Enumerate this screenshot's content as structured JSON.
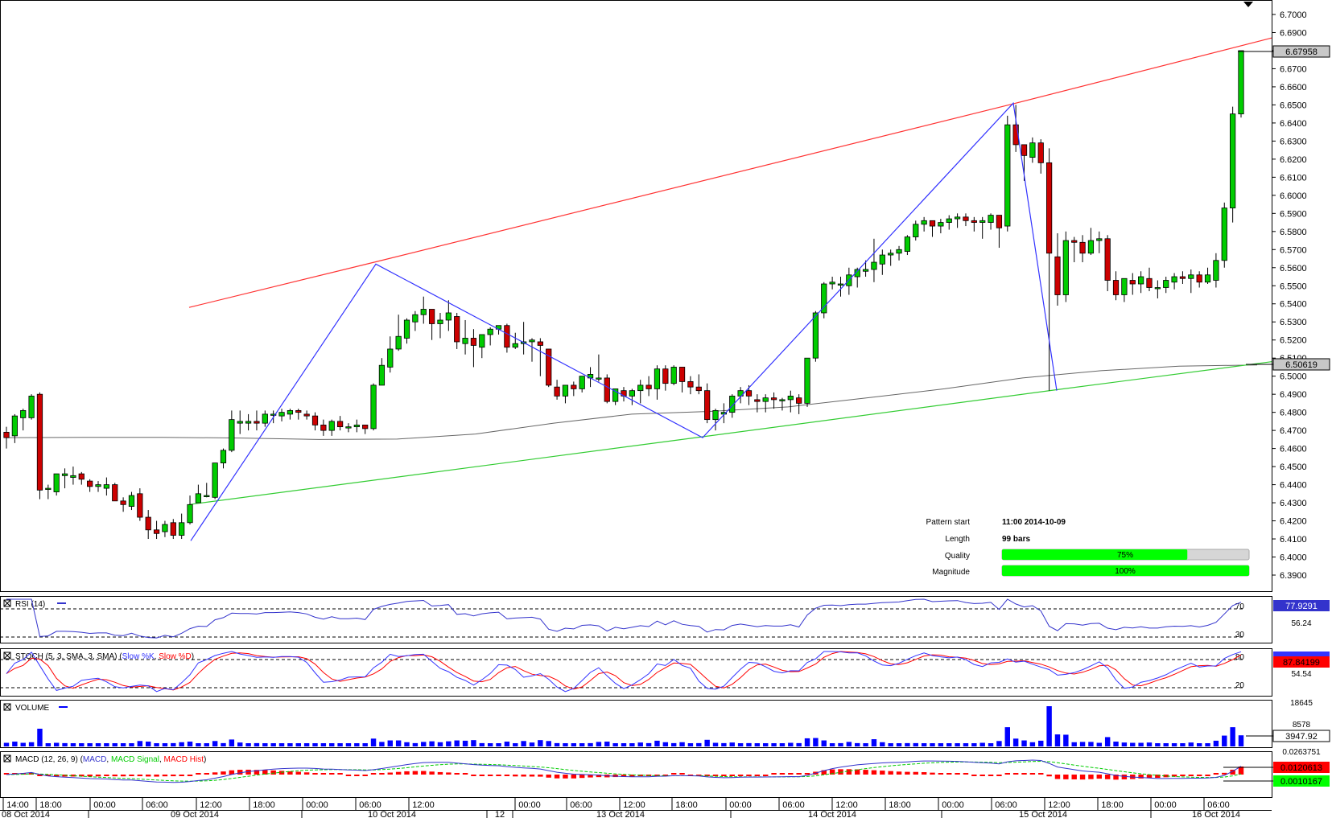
{
  "pattern_info": {
    "start_label": "Pattern start",
    "start_value": "11:00 2014-10-09",
    "length_label": "Length",
    "length_value": "99 bars",
    "quality_label": "Quality",
    "quality_text": "75%",
    "quality_fraction": 0.75,
    "magnitude_label": "Magnitude",
    "magnitude_text": "100%",
    "magnitude_fraction": 1.0
  },
  "price_axis": {
    "ticks": [
      "6.7000",
      "6.6900",
      "6.6800",
      "6.6700",
      "6.6600",
      "6.6500",
      "6.6400",
      "6.6300",
      "6.6200",
      "6.6100",
      "6.6000",
      "6.5900",
      "6.5800",
      "6.5700",
      "6.5600",
      "6.5500",
      "6.5400",
      "6.5300",
      "6.5200",
      "6.5100",
      "6.5000",
      "6.4900",
      "6.4800",
      "6.4700",
      "6.4600",
      "6.4500",
      "6.4400",
      "6.4300",
      "6.4200",
      "6.4100",
      "6.4000",
      "6.3900"
    ],
    "current_price": "6.67958",
    "ma_value": "6.50619"
  },
  "rsi": {
    "title": "RSI (14)",
    "value": "77.9291",
    "mid": "56.24",
    "upper": "70",
    "lower": "30"
  },
  "stoch": {
    "title": "STOCH (5, 3, SMA, 3, SMA)",
    "k_label": "Slow %K",
    "d_label": "Slow %D",
    "value": "87.84199",
    "mid": "54.54",
    "upper": "80",
    "lower": "20"
  },
  "volume": {
    "title": "VOLUME",
    "value": "3947.92",
    "top": "18645",
    "mid": "8578"
  },
  "macd": {
    "title": "MACD (12, 26, 9)",
    "macd_label": "MACD",
    "signal_label": "MACD Signal",
    "hist_label": "MACD Hist",
    "top": "0.0263751",
    "value1": "0.0120613",
    "value2": "0.0010167"
  },
  "time_axis": {
    "hours": [
      "14:00",
      "18:00",
      "00:00",
      "06:00",
      "12:00",
      "18:00",
      "00:00",
      "06:00",
      "12:00",
      "00:00",
      "06:00",
      "12:00",
      "18:00",
      "00:00",
      "06:00",
      "12:00",
      "18:00",
      "00:00",
      "06:00",
      "12:00",
      "18:00",
      "00:00",
      "06:00"
    ],
    "dates": [
      "08 Oct 2014",
      "09 Oct 2014",
      "10 Oct 2014",
      "12",
      "13 Oct 2014",
      "14 Oct 2014",
      "15 Oct 2014",
      "16 Oct 2014"
    ]
  },
  "colors": {
    "up_candle": "#00cc00",
    "down_candle": "#cc0000",
    "resistance": "#ff3333",
    "support": "#33cc33",
    "pattern": "#3333ff",
    "moving_average": "#666666",
    "rsi_line": "#3333cc",
    "stoch_k": "#3333ff",
    "stoch_d": "#ff0000",
    "volume_bar": "#0000ff",
    "macd_line": "#3333cc",
    "macd_signal": "#00cc00",
    "macd_hist": "#ff0000",
    "quality_bar": "#00ff00"
  },
  "chart_data": {
    "type": "candlestick",
    "instrument_timeframe": "1h",
    "ylim": [
      6.385,
      6.705
    ],
    "candles": [
      [
        6.469,
        6.472,
        6.46,
        6.466
      ],
      [
        6.467,
        6.479,
        6.463,
        6.478
      ],
      [
        6.477,
        6.482,
        6.47,
        6.481
      ],
      [
        6.477,
        6.49,
        6.476,
        6.489
      ],
      [
        6.49,
        6.491,
        6.432,
        6.437
      ],
      [
        6.438,
        6.44,
        6.432,
        6.438
      ],
      [
        6.436,
        6.446,
        6.434,
        6.446
      ],
      [
        6.445,
        6.449,
        6.438,
        6.446
      ],
      [
        6.444,
        6.45,
        6.44,
        6.445
      ],
      [
        6.446,
        6.447,
        6.44,
        6.443
      ],
      [
        6.442,
        6.443,
        6.436,
        6.439
      ],
      [
        6.439,
        6.442,
        6.436,
        6.44
      ],
      [
        6.438,
        6.444,
        6.434,
        6.44
      ],
      [
        6.44,
        6.441,
        6.431,
        6.431
      ],
      [
        6.431,
        6.433,
        6.425,
        6.429
      ],
      [
        6.428,
        6.436,
        6.426,
        6.434
      ],
      [
        6.435,
        6.438,
        6.42,
        6.422
      ],
      [
        6.422,
        6.426,
        6.41,
        6.415
      ],
      [
        6.415,
        6.42,
        6.41,
        6.413
      ],
      [
        6.414,
        6.42,
        6.411,
        6.418
      ],
      [
        6.419,
        6.421,
        6.41,
        6.412
      ],
      [
        6.412,
        6.424,
        6.41,
        6.419
      ],
      [
        6.419,
        6.434,
        6.418,
        6.429
      ],
      [
        6.43,
        6.44,
        6.43,
        6.435
      ],
      [
        6.434,
        6.441,
        6.433,
        6.434
      ],
      [
        6.433,
        6.45,
        6.432,
        6.452
      ],
      [
        6.452,
        6.46,
        6.449,
        6.459
      ],
      [
        6.459,
        6.481,
        6.458,
        6.476
      ],
      [
        6.474,
        6.481,
        6.468,
        6.475
      ],
      [
        6.474,
        6.479,
        6.47,
        6.475
      ],
      [
        6.475,
        6.481,
        6.47,
        6.474
      ],
      [
        6.474,
        6.481,
        6.472,
        6.479
      ],
      [
        6.479,
        6.481,
        6.474,
        6.479
      ],
      [
        6.478,
        6.482,
        6.475,
        6.48
      ],
      [
        6.479,
        6.482,
        6.476,
        6.481
      ],
      [
        6.481,
        6.482,
        6.476,
        6.48
      ],
      [
        6.479,
        6.481,
        6.476,
        6.478
      ],
      [
        6.478,
        6.48,
        6.47,
        6.473
      ],
      [
        6.473,
        6.476,
        6.467,
        6.47
      ],
      [
        6.47,
        6.476,
        6.467,
        6.475
      ],
      [
        6.475,
        6.478,
        6.47,
        6.472
      ],
      [
        6.472,
        6.474,
        6.469,
        6.472
      ],
      [
        6.472,
        6.476,
        6.469,
        6.473
      ],
      [
        6.473,
        6.472,
        6.468,
        6.471
      ],
      [
        6.471,
        6.496,
        6.47,
        6.495
      ],
      [
        6.495,
        6.51,
        6.495,
        6.506
      ],
      [
        6.505,
        6.522,
        6.502,
        6.515
      ],
      [
        6.515,
        6.534,
        6.514,
        6.522
      ],
      [
        6.521,
        6.532,
        6.518,
        6.531
      ],
      [
        6.53,
        6.536,
        6.525,
        6.534
      ],
      [
        6.534,
        6.544,
        6.529,
        6.537
      ],
      [
        6.537,
        6.537,
        6.52,
        6.529
      ],
      [
        6.529,
        6.535,
        6.521,
        6.531
      ],
      [
        6.531,
        6.542,
        6.525,
        6.535
      ],
      [
        6.533,
        6.535,
        6.515,
        6.519
      ],
      [
        6.518,
        6.531,
        6.512,
        6.521
      ],
      [
        6.521,
        6.526,
        6.505,
        6.517
      ],
      [
        6.516,
        6.521,
        6.51,
        6.523
      ],
      [
        6.523,
        6.527,
        6.517,
        6.526
      ],
      [
        6.526,
        6.528,
        6.523,
        6.528
      ],
      [
        6.528,
        6.529,
        6.513,
        6.516
      ],
      [
        6.516,
        6.524,
        6.515,
        6.518
      ],
      [
        6.518,
        6.53,
        6.512,
        6.519
      ],
      [
        6.519,
        6.521,
        6.508,
        6.52
      ],
      [
        6.519,
        6.521,
        6.5,
        6.517
      ],
      [
        6.515,
        6.512,
        6.494,
        6.495
      ],
      [
        6.494,
        6.498,
        6.487,
        6.489
      ],
      [
        6.489,
        6.493,
        6.485,
        6.495
      ],
      [
        6.495,
        6.497,
        6.489,
        6.493
      ],
      [
        6.493,
        6.5,
        6.491,
        6.5
      ],
      [
        6.499,
        6.505,
        6.494,
        6.501
      ],
      [
        6.499,
        6.512,
        6.497,
        6.499
      ],
      [
        6.499,
        6.501,
        6.485,
        6.486
      ],
      [
        6.486,
        6.493,
        6.484,
        6.493
      ],
      [
        6.492,
        6.494,
        6.486,
        6.489
      ],
      [
        6.489,
        6.493,
        6.484,
        6.492
      ],
      [
        6.492,
        6.498,
        6.485,
        6.495
      ],
      [
        6.495,
        6.5,
        6.489,
        6.493
      ],
      [
        6.493,
        6.506,
        6.487,
        6.504
      ],
      [
        6.504,
        6.506,
        6.492,
        6.496
      ],
      [
        6.496,
        6.506,
        6.495,
        6.505
      ],
      [
        6.505,
        6.505,
        6.491,
        6.497
      ],
      [
        6.497,
        6.5,
        6.49,
        6.494
      ],
      [
        6.494,
        6.501,
        6.49,
        6.492
      ],
      [
        6.492,
        6.496,
        6.474,
        6.476
      ],
      [
        6.476,
        6.482,
        6.47,
        6.481
      ],
      [
        6.479,
        6.485,
        6.474,
        6.48
      ],
      [
        6.48,
        6.49,
        6.477,
        6.489
      ],
      [
        6.489,
        6.494,
        6.485,
        6.492
      ],
      [
        6.492,
        6.495,
        6.484,
        6.489
      ],
      [
        6.487,
        6.49,
        6.48,
        6.486
      ],
      [
        6.486,
        6.49,
        6.48,
        6.488
      ],
      [
        6.488,
        6.491,
        6.482,
        6.487
      ],
      [
        6.487,
        6.488,
        6.481,
        6.487
      ],
      [
        6.487,
        6.492,
        6.48,
        6.489
      ],
      [
        6.488,
        6.49,
        6.479,
        6.485
      ],
      [
        6.485,
        6.51,
        6.483,
        6.51
      ],
      [
        6.51,
        6.536,
        6.508,
        6.535
      ],
      [
        6.535,
        6.552,
        6.532,
        6.551
      ],
      [
        6.551,
        6.555,
        6.548,
        6.552
      ],
      [
        6.551,
        6.555,
        6.544,
        6.551
      ],
      [
        6.55,
        6.56,
        6.545,
        6.556
      ],
      [
        6.555,
        6.56,
        6.549,
        6.559
      ],
      [
        6.558,
        6.564,
        6.555,
        6.559
      ],
      [
        6.559,
        6.576,
        6.552,
        6.563
      ],
      [
        6.562,
        6.57,
        6.556,
        6.567
      ],
      [
        6.567,
        6.57,
        6.561,
        6.568
      ],
      [
        6.568,
        6.572,
        6.564,
        6.57
      ],
      [
        6.569,
        6.578,
        6.567,
        6.577
      ],
      [
        6.577,
        6.586,
        6.575,
        6.584
      ],
      [
        6.584,
        6.588,
        6.58,
        6.586
      ],
      [
        6.586,
        6.586,
        6.577,
        6.583
      ],
      [
        6.583,
        6.587,
        6.579,
        6.585
      ],
      [
        6.585,
        6.589,
        6.581,
        6.587
      ],
      [
        6.587,
        6.59,
        6.582,
        6.588
      ],
      [
        6.588,
        6.59,
        6.583,
        6.586
      ],
      [
        6.586,
        6.588,
        6.58,
        6.585
      ],
      [
        6.585,
        6.588,
        6.576,
        6.586
      ],
      [
        6.585,
        6.59,
        6.581,
        6.589
      ],
      [
        6.589,
        6.589,
        6.571,
        6.582
      ],
      [
        6.583,
        6.644,
        6.58,
        6.639
      ],
      [
        6.639,
        6.65,
        6.624,
        6.628
      ],
      [
        6.628,
        6.628,
        6.608,
        6.622
      ],
      [
        6.621,
        6.632,
        6.618,
        6.629
      ],
      [
        6.629,
        6.631,
        6.612,
        6.618
      ],
      [
        6.618,
        6.626,
        6.492,
        6.568
      ],
      [
        6.566,
        6.579,
        6.539,
        6.545
      ],
      [
        6.545,
        6.58,
        6.541,
        6.575
      ],
      [
        6.575,
        6.577,
        6.563,
        6.574
      ],
      [
        6.574,
        6.578,
        6.563,
        6.568
      ],
      [
        6.568,
        6.582,
        6.567,
        6.575
      ],
      [
        6.575,
        6.58,
        6.568,
        6.576
      ],
      [
        6.576,
        6.578,
        6.547,
        6.553
      ],
      [
        6.553,
        6.558,
        6.542,
        6.545
      ],
      [
        6.545,
        6.554,
        6.541,
        6.554
      ],
      [
        6.553,
        6.557,
        6.545,
        6.551
      ],
      [
        6.551,
        6.558,
        6.546,
        6.555
      ],
      [
        6.554,
        6.56,
        6.547,
        6.549
      ],
      [
        6.549,
        6.553,
        6.543,
        6.549
      ],
      [
        6.549,
        6.555,
        6.546,
        6.553
      ],
      [
        6.552,
        6.557,
        6.548,
        6.555
      ],
      [
        6.555,
        6.558,
        6.551,
        6.554
      ],
      [
        6.554,
        6.559,
        6.546,
        6.556
      ],
      [
        6.556,
        6.558,
        6.549,
        6.552
      ],
      [
        6.552,
        6.56,
        6.551,
        6.556
      ],
      [
        6.553,
        6.568,
        6.549,
        6.564
      ],
      [
        6.564,
        6.596,
        6.56,
        6.593
      ],
      [
        6.593,
        6.649,
        6.585,
        6.645
      ],
      [
        6.645,
        6.68,
        6.643,
        6.68
      ]
    ],
    "moving_average": [
      6.466,
      6.4662,
      6.4662,
      6.4658,
      6.465,
      6.4652,
      6.468,
      6.474,
      6.479,
      6.4805,
      6.483,
      6.488,
      6.493,
      6.499,
      6.503,
      6.5055,
      6.5062
    ],
    "resistance_line": [
      [
        6.538,
        6.563,
        6.6505,
        6.687
      ]
    ],
    "support_line": [
      [
        6.429,
        6.4665,
        6.4925,
        6.508
      ]
    ],
    "pattern_points": [
      6.409,
      6.562,
      6.466,
      6.651,
      6.492
    ]
  }
}
